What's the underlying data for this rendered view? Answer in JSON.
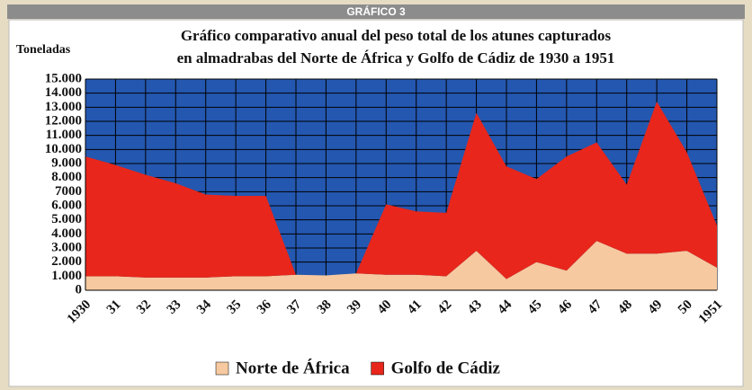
{
  "header": "GRÁFICO 3",
  "chart_data": {
    "type": "stacked_area",
    "title": [
      "Gráfico comparativo anual del peso total de los atunes capturados",
      "en almadrabas del Norte de África y Golfo de Cádiz de 1930 a 1951"
    ],
    "y_label": "Toneladas",
    "categories": [
      "1930",
      "31",
      "32",
      "33",
      "34",
      "35",
      "36",
      "37",
      "38",
      "39",
      "40",
      "41",
      "42",
      "43",
      "44",
      "45",
      "46",
      "47",
      "48",
      "49",
      "50",
      "1951"
    ],
    "series": [
      {
        "name": "Norte de África",
        "color": "#f6c9a0",
        "values": [
          1000,
          1000,
          900,
          900,
          900,
          1000,
          1000,
          1100,
          1050,
          1200,
          1100,
          1100,
          1000,
          2800,
          800,
          2000,
          1400,
          3500,
          2600,
          2600,
          2800,
          1600
        ]
      },
      {
        "name": "Golfo de Cádiz",
        "color": "#e8261b",
        "values": [
          8500,
          7900,
          7300,
          6700,
          5900,
          5700,
          5700,
          0,
          0,
          0,
          5000,
          4500,
          4500,
          9800,
          8000,
          5900,
          8100,
          7000,
          4900,
          10800,
          7000,
          3000
        ]
      }
    ],
    "ylim": [
      0,
      15000
    ],
    "yticks": [
      0,
      {
        "value": 1000,
        "label": "1.000"
      },
      {
        "value": 2000,
        "label": "2.000"
      },
      {
        "value": 3000,
        "label": "3.000"
      },
      {
        "value": 4000,
        "label": "4.000"
      },
      {
        "value": 5000,
        "label": "5.000"
      },
      {
        "value": 6000,
        "label": "6.000"
      },
      7000,
      {
        "value": 8000,
        "label": "8.000"
      },
      {
        "value": 9000,
        "label": "9.000"
      },
      {
        "value": 10000,
        "label": "10.000"
      },
      {
        "value": 11000,
        "label": "11.000"
      },
      {
        "value": 12000,
        "label": "12.000"
      },
      {
        "value": 13000,
        "label": "13.000"
      },
      {
        "value": 14000,
        "label": "14.000"
      },
      {
        "value": 15000,
        "label": "15.000"
      }
    ],
    "grid": true,
    "plot_background": "#2457b0",
    "legend": "bottom"
  }
}
